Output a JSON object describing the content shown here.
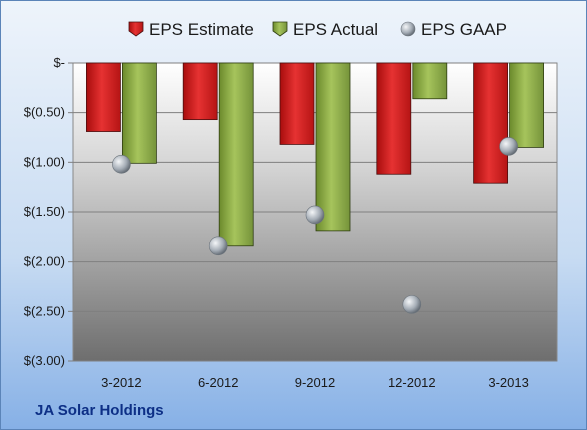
{
  "chart_data": {
    "type": "bar",
    "categories": [
      "3-2012",
      "6-2012",
      "9-2012",
      "12-2012",
      "3-2013"
    ],
    "series": [
      {
        "name": "EPS Estimate",
        "values": [
          -0.69,
          -0.57,
          -0.82,
          -1.12,
          -1.21
        ],
        "color": "#cc1f1f"
      },
      {
        "name": "EPS Actual",
        "values": [
          -1.01,
          -1.84,
          -1.69,
          -0.36,
          -0.85
        ],
        "color": "#8cab44"
      },
      {
        "name": "EPS GAAP",
        "values": [
          -1.02,
          -1.84,
          -1.53,
          -2.43,
          -0.84
        ],
        "color": "#9aa4ae",
        "marker": "sphere"
      }
    ],
    "yticks": [
      {
        "value": 0,
        "label": "$-"
      },
      {
        "value": -0.5,
        "label": "$(0.50)"
      },
      {
        "value": -1.0,
        "label": "$(1.00)"
      },
      {
        "value": -1.5,
        "label": "$(1.50)"
      },
      {
        "value": -2.0,
        "label": "$(2.00)"
      },
      {
        "value": -2.5,
        "label": "$(2.50)"
      },
      {
        "value": -3.0,
        "label": "$(3.00)"
      }
    ],
    "ylim": [
      -3.0,
      0
    ],
    "grid": true,
    "legend": "top"
  },
  "footer": {
    "company": "JA Solar Holdings"
  }
}
